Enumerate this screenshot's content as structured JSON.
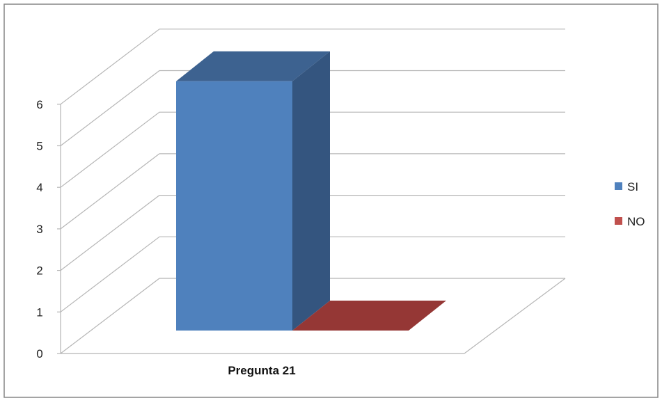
{
  "chart_data": {
    "type": "bar",
    "categories": [
      "Pregunta 21"
    ],
    "series": [
      {
        "name": "SI",
        "values": [
          6
        ]
      },
      {
        "name": "NO",
        "values": [
          0
        ]
      }
    ],
    "ylim": [
      0,
      6
    ],
    "yticks": [
      "0",
      "1",
      "2",
      "3",
      "4",
      "5",
      "6"
    ],
    "grid": true,
    "legend_position": "right",
    "three_d": true,
    "colors": {
      "SI": {
        "front": "#4f81bd",
        "side": "#34557f",
        "top": "#3d6290"
      },
      "NO": {
        "front": "#c0504d",
        "side": "#7f3331",
        "top": "#953735"
      },
      "grid": "#b5b5b5",
      "frame": "#868686"
    }
  }
}
